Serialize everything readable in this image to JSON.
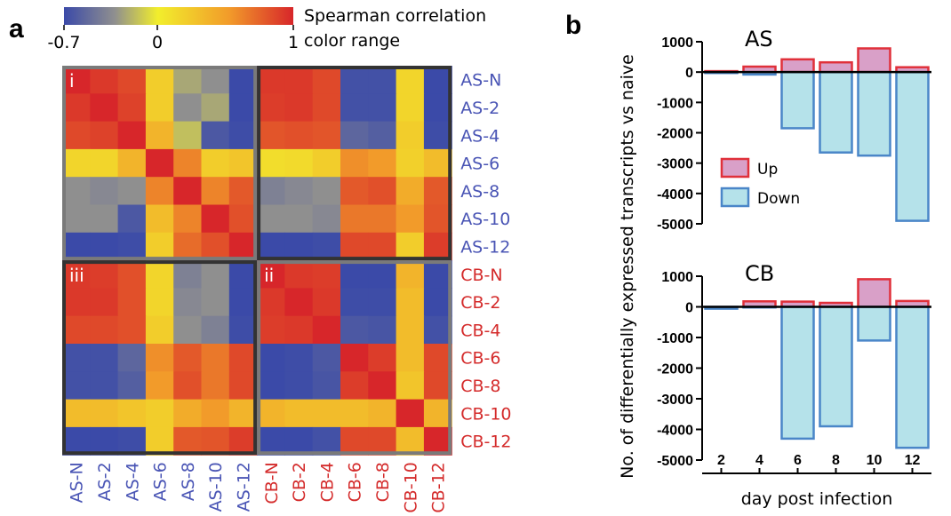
{
  "panels": {
    "a_letter": "a",
    "b_letter": "b"
  },
  "colorbar": {
    "title_line1": "Spearman correlation",
    "title_line2": "color range",
    "tick_min": "-0.7",
    "tick_mid": "0",
    "tick_max": "1",
    "colors": [
      "#3b4aa8",
      "#8f8f8f",
      "#f2ee2c",
      "#f29b2a",
      "#d7262a"
    ]
  },
  "colors": {
    "as_label": "#4a55b5",
    "cb_label": "#d42b2b",
    "up_fill": "#d9a0c8",
    "up_stroke": "#e0303a",
    "down_fill": "#b5e2ea",
    "down_stroke": "#4a86c8"
  },
  "chart_data": [
    {
      "type": "heatmap",
      "title": "",
      "row_labels": [
        "AS-N",
        "AS-2",
        "AS-4",
        "AS-6",
        "AS-8",
        "AS-10",
        "AS-12",
        "CB-N",
        "CB-2",
        "CB-4",
        "CB-6",
        "CB-8",
        "CB-10",
        "CB-12"
      ],
      "col_labels": [
        "AS-N",
        "AS-2",
        "AS-4",
        "AS-6",
        "AS-8",
        "AS-10",
        "AS-12",
        "CB-N",
        "CB-2",
        "CB-4",
        "CB-6",
        "CB-8",
        "CB-10",
        "CB-12"
      ],
      "quadrant_labels": [
        "i",
        "ii",
        "iii"
      ],
      "color_range": [
        -0.7,
        1
      ],
      "values": [
        [
          1.0,
          0.92,
          0.85,
          0.2,
          -0.15,
          -0.2,
          -0.7,
          0.92,
          0.92,
          0.85,
          -0.65,
          -0.65,
          0.15,
          -0.7
        ],
        [
          0.92,
          1.0,
          0.88,
          0.2,
          -0.2,
          -0.15,
          -0.7,
          0.9,
          0.92,
          0.85,
          -0.65,
          -0.65,
          0.15,
          -0.7
        ],
        [
          0.85,
          0.88,
          1.0,
          0.35,
          -0.1,
          -0.6,
          -0.68,
          0.8,
          0.82,
          0.8,
          -0.5,
          -0.55,
          0.2,
          -0.68
        ],
        [
          0.15,
          0.15,
          0.35,
          1.0,
          0.6,
          0.2,
          0.25,
          0.1,
          0.12,
          0.2,
          0.55,
          0.5,
          0.18,
          0.3
        ],
        [
          -0.2,
          -0.25,
          -0.2,
          0.6,
          1.0,
          0.6,
          0.78,
          -0.3,
          -0.25,
          -0.2,
          0.78,
          0.82,
          0.4,
          0.78
        ],
        [
          -0.2,
          -0.2,
          -0.6,
          0.3,
          0.6,
          1.0,
          0.82,
          -0.2,
          -0.2,
          -0.25,
          0.65,
          0.65,
          0.5,
          0.8
        ],
        [
          -0.7,
          -0.7,
          -0.68,
          0.2,
          0.7,
          0.82,
          1.0,
          -0.7,
          -0.7,
          -0.68,
          0.85,
          0.85,
          0.2,
          0.9
        ],
        [
          0.92,
          0.9,
          0.82,
          0.15,
          -0.3,
          -0.2,
          -0.7,
          1.0,
          0.92,
          0.9,
          -0.7,
          -0.7,
          0.35,
          -0.7
        ],
        [
          0.92,
          0.92,
          0.82,
          0.15,
          -0.25,
          -0.2,
          -0.7,
          0.92,
          1.0,
          0.92,
          -0.68,
          -0.68,
          0.3,
          -0.7
        ],
        [
          0.85,
          0.85,
          0.82,
          0.2,
          -0.2,
          -0.3,
          -0.68,
          0.9,
          0.92,
          1.0,
          -0.6,
          -0.62,
          0.3,
          -0.65
        ],
        [
          -0.65,
          -0.65,
          -0.5,
          0.55,
          0.78,
          0.65,
          0.85,
          -0.7,
          -0.68,
          -0.6,
          1.0,
          0.9,
          0.3,
          0.85
        ],
        [
          -0.65,
          -0.65,
          -0.55,
          0.5,
          0.82,
          0.65,
          0.85,
          -0.7,
          -0.68,
          -0.62,
          0.9,
          1.0,
          0.25,
          0.85
        ],
        [
          0.3,
          0.3,
          0.25,
          0.2,
          0.4,
          0.5,
          0.35,
          0.35,
          0.3,
          0.3,
          0.3,
          0.35,
          1.0,
          0.35
        ],
        [
          -0.7,
          -0.7,
          -0.68,
          0.2,
          0.78,
          0.8,
          0.9,
          -0.7,
          -0.7,
          -0.65,
          0.85,
          0.85,
          0.3,
          1.0
        ]
      ]
    },
    {
      "type": "bar",
      "title": "AS",
      "ylabel": "No. of differentially expressed transcripts vs naive",
      "xlabel": "day post infection",
      "categories": [
        "2",
        "4",
        "6",
        "8",
        "10",
        "12"
      ],
      "ylim": [
        -5000,
        1000
      ],
      "yticks": [
        "1000",
        "0",
        "-1000",
        "-2000",
        "-3000",
        "-4000",
        "-5000"
      ],
      "legend_position": "center-left",
      "series": [
        {
          "name": "Up",
          "values": [
            30,
            180,
            420,
            320,
            780,
            160
          ]
        },
        {
          "name": "Down",
          "values": [
            -30,
            -80,
            -1850,
            -2650,
            -2750,
            -4900
          ]
        }
      ]
    },
    {
      "type": "bar",
      "title": "CB",
      "ylabel": "No. of differentially expressed transcripts vs naive",
      "xlabel": "day post infection",
      "categories": [
        "2",
        "4",
        "6",
        "8",
        "10",
        "12"
      ],
      "ylim": [
        -5000,
        1000
      ],
      "yticks": [
        "1000",
        "0",
        "-1000",
        "-2000",
        "-3000",
        "-4000",
        "-5000"
      ],
      "series": [
        {
          "name": "Up",
          "values": [
            0,
            180,
            170,
            130,
            900,
            190
          ]
        },
        {
          "name": "Down",
          "values": [
            -60,
            -20,
            -4300,
            -3900,
            -1100,
            -4600
          ]
        }
      ]
    }
  ]
}
